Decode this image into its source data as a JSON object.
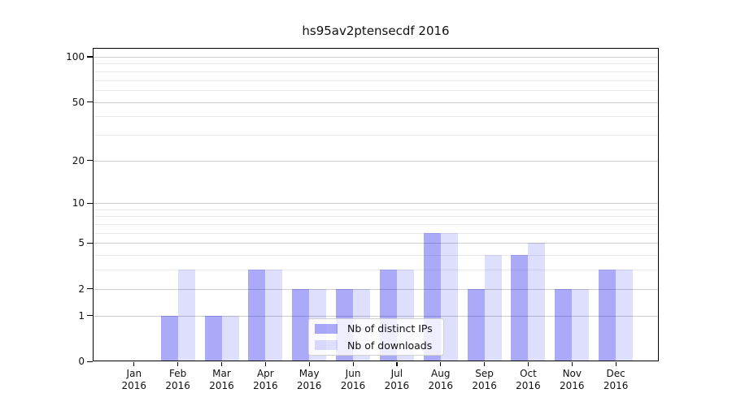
{
  "chart_data": {
    "type": "bar",
    "title": "hs95av2ptensecdf 2016",
    "categories": [
      {
        "month": "Jan",
        "year": "2016"
      },
      {
        "month": "Feb",
        "year": "2016"
      },
      {
        "month": "Mar",
        "year": "2016"
      },
      {
        "month": "Apr",
        "year": "2016"
      },
      {
        "month": "May",
        "year": "2016"
      },
      {
        "month": "Jun",
        "year": "2016"
      },
      {
        "month": "Jul",
        "year": "2016"
      },
      {
        "month": "Aug",
        "year": "2016"
      },
      {
        "month": "Sep",
        "year": "2016"
      },
      {
        "month": "Oct",
        "year": "2016"
      },
      {
        "month": "Nov",
        "year": "2016"
      },
      {
        "month": "Dec",
        "year": "2016"
      }
    ],
    "series": [
      {
        "name": "Nb of distinct IPs",
        "color": "rgba(0,0,238,0.335)",
        "values": [
          0,
          1,
          1,
          3,
          2,
          2,
          3,
          6,
          2,
          4,
          2,
          3
        ]
      },
      {
        "name": "Nb of downloads",
        "color": "rgba(0,0,238,0.13)",
        "values": [
          0,
          3,
          1,
          3,
          2,
          2,
          3,
          6,
          4,
          5,
          2,
          3
        ]
      }
    ],
    "y_axis": {
      "scale": "log10(1+v)",
      "major_ticks": [
        0,
        1,
        2,
        5,
        10,
        20,
        50,
        100
      ],
      "minor_ticks": [
        3,
        4,
        6,
        7,
        8,
        9,
        30,
        40,
        60,
        70,
        80,
        90
      ],
      "ylim": [
        0,
        114
      ]
    },
    "x_axis": {
      "ticks_per_month": true
    },
    "legend": {
      "position": "lower-center"
    },
    "colors": {
      "bar_distinct_ips": "#aaaaf8",
      "bar_downloads": "#dedefa",
      "grid_major": "#cdcdcd",
      "grid_minor": "#eaeaea",
      "spine": "#000000"
    }
  }
}
